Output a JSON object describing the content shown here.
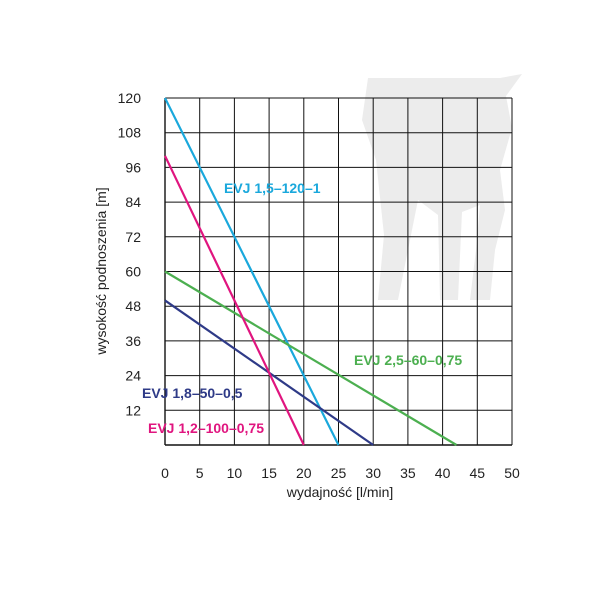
{
  "chart_data": {
    "type": "line",
    "title": "",
    "xlabel": "wydajność [l/min]",
    "ylabel": "wysokość podnoszenia [m]",
    "xlim": [
      0,
      50
    ],
    "ylim": [
      0,
      120
    ],
    "xticks": [
      0,
      5,
      10,
      15,
      20,
      25,
      30,
      35,
      40,
      45,
      50
    ],
    "yticks": [
      12,
      24,
      36,
      48,
      60,
      72,
      84,
      96,
      108,
      120
    ],
    "grid": true,
    "series": [
      {
        "name": "EVJ 1,5–120–1",
        "color": "#1aa8dc",
        "x": [
          0,
          25
        ],
        "y": [
          120,
          0
        ]
      },
      {
        "name": "EVJ 2,5–60–0,75",
        "color": "#4caf50",
        "x": [
          0,
          42
        ],
        "y": [
          60,
          0
        ]
      },
      {
        "name": "EVJ 1,8–50–0,5",
        "color": "#2e3a87",
        "x": [
          0,
          30
        ],
        "y": [
          50,
          0
        ]
      },
      {
        "name": "EVJ 1,2–100–0,75",
        "color": "#e0157f",
        "x": [
          0,
          20
        ],
        "y": [
          100,
          0
        ]
      }
    ]
  }
}
